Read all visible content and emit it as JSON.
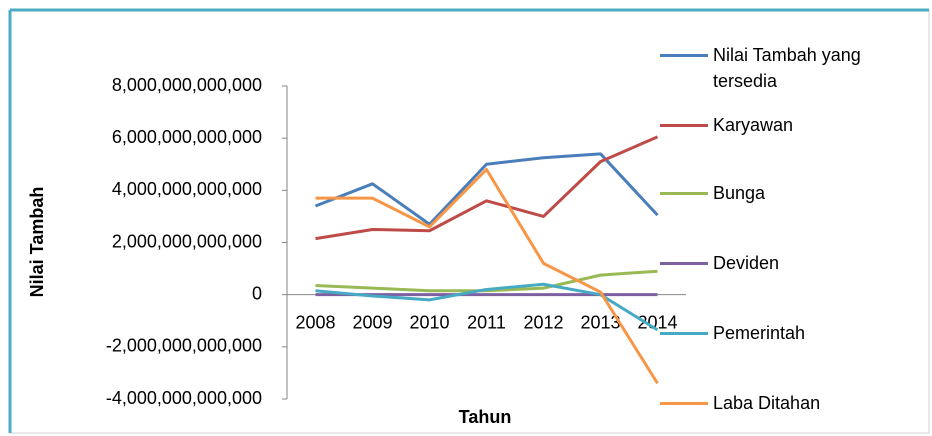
{
  "chart_data": {
    "type": "line",
    "x_label": "Tahun",
    "y_label": "Nilai Tambah",
    "categories": [
      "2008",
      "2009",
      "2010",
      "2011",
      "2012",
      "2013",
      "2014"
    ],
    "series": [
      {
        "name": "Nilai Tambah yang tersedia",
        "color": "#4a7ebb",
        "values": [
          3400000000000,
          4250000000000,
          2700000000000,
          5000000000000,
          5250000000000,
          5400000000000,
          3050000000000
        ]
      },
      {
        "name": "Karyawan",
        "color": "#be4b48",
        "values": [
          2150000000000,
          2500000000000,
          2450000000000,
          3600000000000,
          3000000000000,
          5100000000000,
          6050000000000
        ]
      },
      {
        "name": "Bunga",
        "color": "#98b954",
        "values": [
          350000000000,
          250000000000,
          150000000000,
          150000000000,
          250000000000,
          750000000000,
          900000000000
        ]
      },
      {
        "name": "Deviden",
        "color": "#7d60a0",
        "values": [
          0,
          0,
          0,
          0,
          0,
          0,
          0
        ]
      },
      {
        "name": "Pemerintah",
        "color": "#46aac5",
        "values": [
          150000000000,
          -50000000000,
          -200000000000,
          200000000000,
          400000000000,
          0,
          -1350000000000
        ]
      },
      {
        "name": "Laba Ditahan",
        "color": "#f79646",
        "values": [
          3700000000000,
          3700000000000,
          2600000000000,
          4800000000000,
          1200000000000,
          100000000000,
          -3400000000000
        ]
      }
    ],
    "ylim": [
      -4000000000000,
      8000000000000
    ],
    "yticks": [
      {
        "value": -4000000000000,
        "label": "-4,000,000,000,000"
      },
      {
        "value": -2000000000000,
        "label": "-2,000,000,000,000"
      },
      0,
      {
        "value": 2000000000000,
        "label": "2,000,000,000,000"
      },
      {
        "value": 4000000000000,
        "label": "4,000,000,000,000"
      },
      {
        "value": 6000000000000,
        "label": "6,000,000,000,000"
      },
      {
        "value": 8000000000000,
        "label": "8,000,000,000,000"
      }
    ],
    "grid": false,
    "legend": "right"
  }
}
